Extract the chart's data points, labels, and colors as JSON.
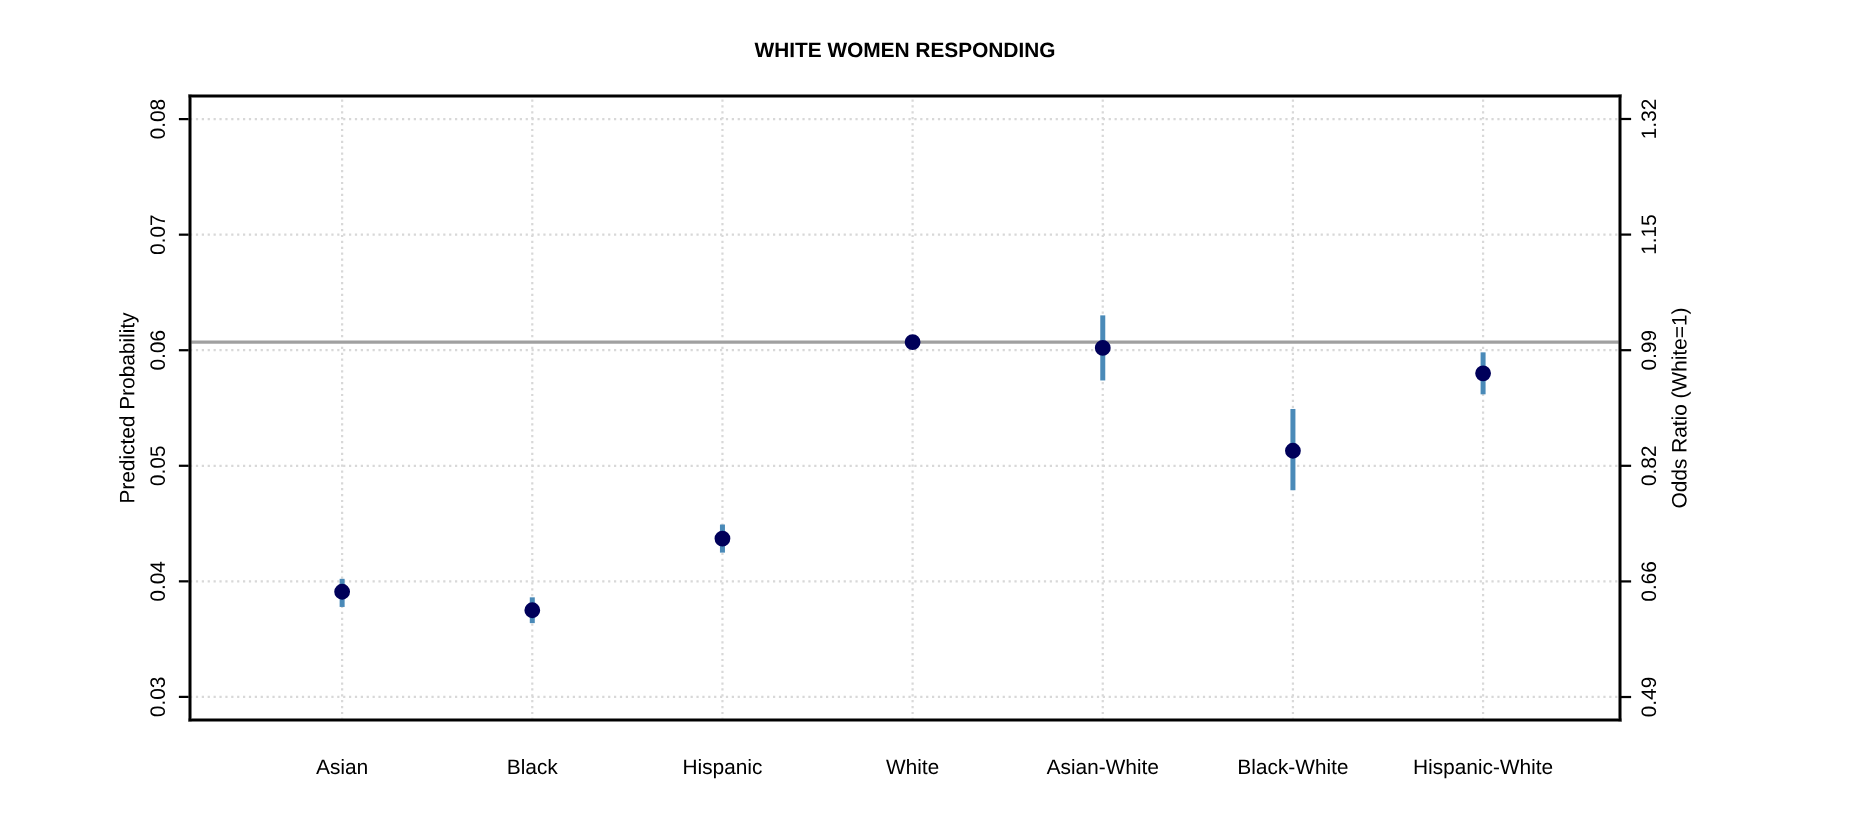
{
  "chart_data": {
    "type": "scatter",
    "title": "WHITE WOMEN RESPONDING",
    "ylabel": "Predicted Probability",
    "y2label": "Odds Ratio (White=1)",
    "categories": [
      "Asian",
      "Black",
      "Hispanic",
      "White",
      "Asian-White",
      "Black-White",
      "Hispanic-White"
    ],
    "series": [
      {
        "color": "#00005a",
        "values": [
          0.0391,
          0.0375,
          0.0437,
          0.0607,
          0.0602,
          0.0513,
          0.058
        ],
        "errors": [
          [
            0.038,
            0.04
          ],
          [
            0.0366,
            0.0384
          ],
          [
            0.0427,
            0.0447
          ],
          null,
          [
            0.0576,
            0.0628
          ],
          [
            0.0481,
            0.0547
          ],
          [
            0.0564,
            0.0596
          ]
        ]
      }
    ],
    "ylim": [
      0.028,
      0.082
    ],
    "yticks": [
      0.03,
      0.04,
      0.05,
      0.06,
      0.07,
      0.08
    ],
    "y2lim": [
      0.457,
      1.353
    ],
    "y2ticks": [
      {
        "value": 0.49,
        "label": "0.49"
      },
      {
        "value": 0.656,
        "label": "0.66"
      },
      {
        "value": 0.822,
        "label": "0.82"
      },
      {
        "value": 0.988,
        "label": "0.99"
      },
      {
        "value": 1.154,
        "label": "1.15"
      },
      {
        "value": 1.32,
        "label": "1.32"
      }
    ],
    "ref_lines": [
      {
        "axis": "y",
        "value": 0.0607,
        "color": "#a0a0a0"
      }
    ],
    "grid": true,
    "marker": "circle"
  }
}
